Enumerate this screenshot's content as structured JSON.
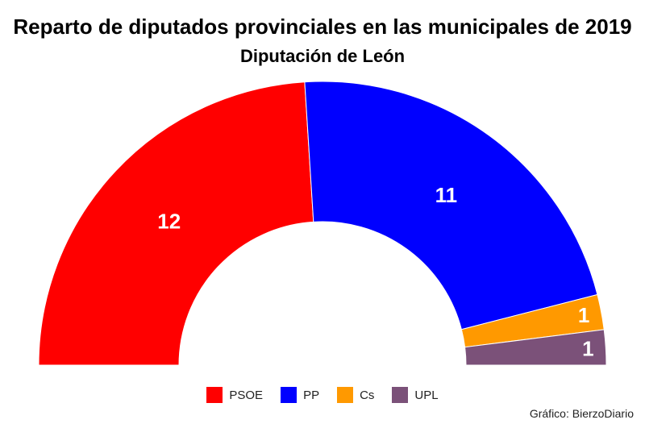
{
  "chart_data": {
    "type": "pie",
    "title": "Reparto de diputados provinciales en las municipales de 2019",
    "subtitle": "Diputación de León",
    "categories": [
      "PSOE",
      "PP",
      "Cs",
      "UPL"
    ],
    "values": [
      12,
      11,
      1,
      1
    ],
    "colors": [
      "#ff0000",
      "#0000ff",
      "#ff9900",
      "#7b5179"
    ],
    "legend": "bottom-center",
    "credit": "Gráfico: BierzoDiario"
  }
}
